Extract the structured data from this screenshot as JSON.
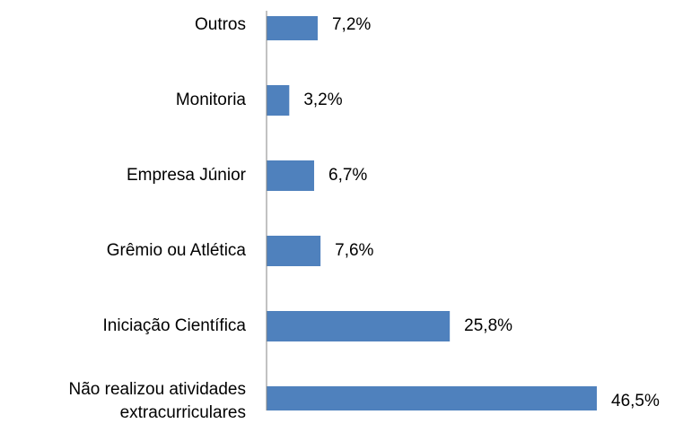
{
  "chart_data": {
    "type": "bar",
    "orientation": "horizontal",
    "categories": [
      "Outros",
      "Monitoria",
      "Empresa Júnior",
      "Grêmio ou Atlética",
      "Iniciação Científica",
      "Não realizou atividades extracurriculares"
    ],
    "values": [
      7.2,
      3.2,
      6.7,
      7.6,
      25.8,
      46.5
    ],
    "value_labels": [
      "7,2%",
      "3,2%",
      "6,7%",
      "7,6%",
      "25,8%",
      "46,5%"
    ],
    "color": "#4f81bd"
  }
}
